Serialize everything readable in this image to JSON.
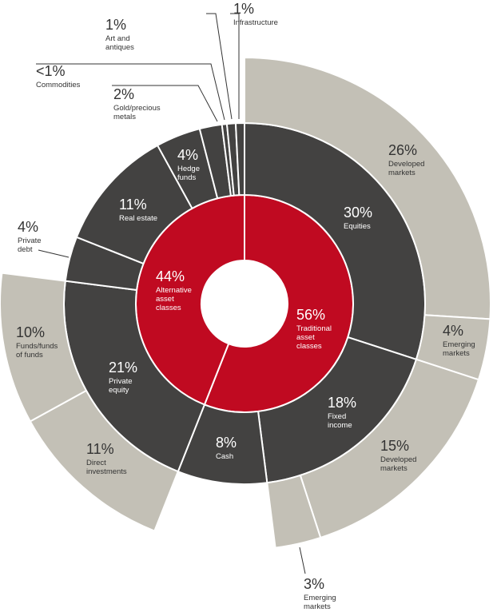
{
  "chart_data": {
    "type": "sunburst",
    "colors": {
      "inner": "#c00a21",
      "middle": "#434241",
      "outer": "#c3c0b6",
      "separator": "#ffffff",
      "label_dark": "#333333",
      "label_light": "#ffffff",
      "leader_line": "#333333"
    },
    "inner_ring": [
      {
        "id": "traditional",
        "pct": "56%",
        "name": "Traditional asset classes",
        "name_lines": [
          "Traditional",
          "asset",
          "classes"
        ],
        "value": 56
      },
      {
        "id": "alternative",
        "pct": "44%",
        "name": "Alternative asset classes",
        "name_lines": [
          "Alternative",
          "asset",
          "classes"
        ],
        "value": 44
      }
    ],
    "middle_ring": [
      {
        "id": "equities",
        "parent": "traditional",
        "pct": "30%",
        "name_lines": [
          "Equities"
        ],
        "value": 30
      },
      {
        "id": "fixed-income",
        "parent": "traditional",
        "pct": "18%",
        "name_lines": [
          "Fixed",
          "income"
        ],
        "value": 18
      },
      {
        "id": "cash",
        "parent": "traditional",
        "pct": "8%",
        "name_lines": [
          "Cash"
        ],
        "value": 8
      },
      {
        "id": "private-equity",
        "parent": "alternative",
        "pct": "21%",
        "name_lines": [
          "Private",
          "equity"
        ],
        "value": 21
      },
      {
        "id": "private-debt",
        "parent": "alternative",
        "pct": "4%",
        "name_lines": [
          "Private",
          "debt"
        ],
        "value": 4
      },
      {
        "id": "real-estate",
        "parent": "alternative",
        "pct": "11%",
        "name_lines": [
          "Real estate"
        ],
        "value": 11
      },
      {
        "id": "hedge-funds",
        "parent": "alternative",
        "pct": "4%",
        "name_lines": [
          "Hedge",
          "funds"
        ],
        "value": 4
      },
      {
        "id": "gold-precious-metals",
        "parent": "alternative",
        "pct": "2%",
        "name_lines": [
          "Gold/precious",
          "metals"
        ],
        "value": 2
      },
      {
        "id": "commodities",
        "parent": "alternative",
        "pct": "<1%",
        "name_lines": [
          "Commodities"
        ],
        "value": 1
      },
      {
        "id": "art-antiques",
        "parent": "alternative",
        "pct": "1%",
        "name_lines": [
          "Art and",
          "antiques"
        ],
        "value": 1
      },
      {
        "id": "infrastructure",
        "parent": "alternative",
        "pct": "1%",
        "name_lines": [
          "Infrastructure"
        ],
        "value": 1
      }
    ],
    "outer_ring": [
      {
        "id": "equities-developed",
        "parent": "equities",
        "pct": "26%",
        "name_lines": [
          "Developed",
          "markets"
        ],
        "value": 26
      },
      {
        "id": "equities-emerging",
        "parent": "equities",
        "pct": "4%",
        "name_lines": [
          "Emerging",
          "markets"
        ],
        "value": 4
      },
      {
        "id": "fixed-developed",
        "parent": "fixed-income",
        "pct": "15%",
        "name_lines": [
          "Developed",
          "markets"
        ],
        "value": 15
      },
      {
        "id": "fixed-emerging",
        "parent": "fixed-income",
        "pct": "3%",
        "name_lines": [
          "Emerging",
          "markets"
        ],
        "value": 3
      },
      {
        "id": "pe-direct",
        "parent": "private-equity",
        "pct": "11%",
        "name_lines": [
          "Direct",
          "investments"
        ],
        "value": 11
      },
      {
        "id": "pe-funds",
        "parent": "private-equity",
        "pct": "10%",
        "name_lines": [
          "Funds/funds",
          "of funds"
        ],
        "value": 10
      }
    ]
  }
}
